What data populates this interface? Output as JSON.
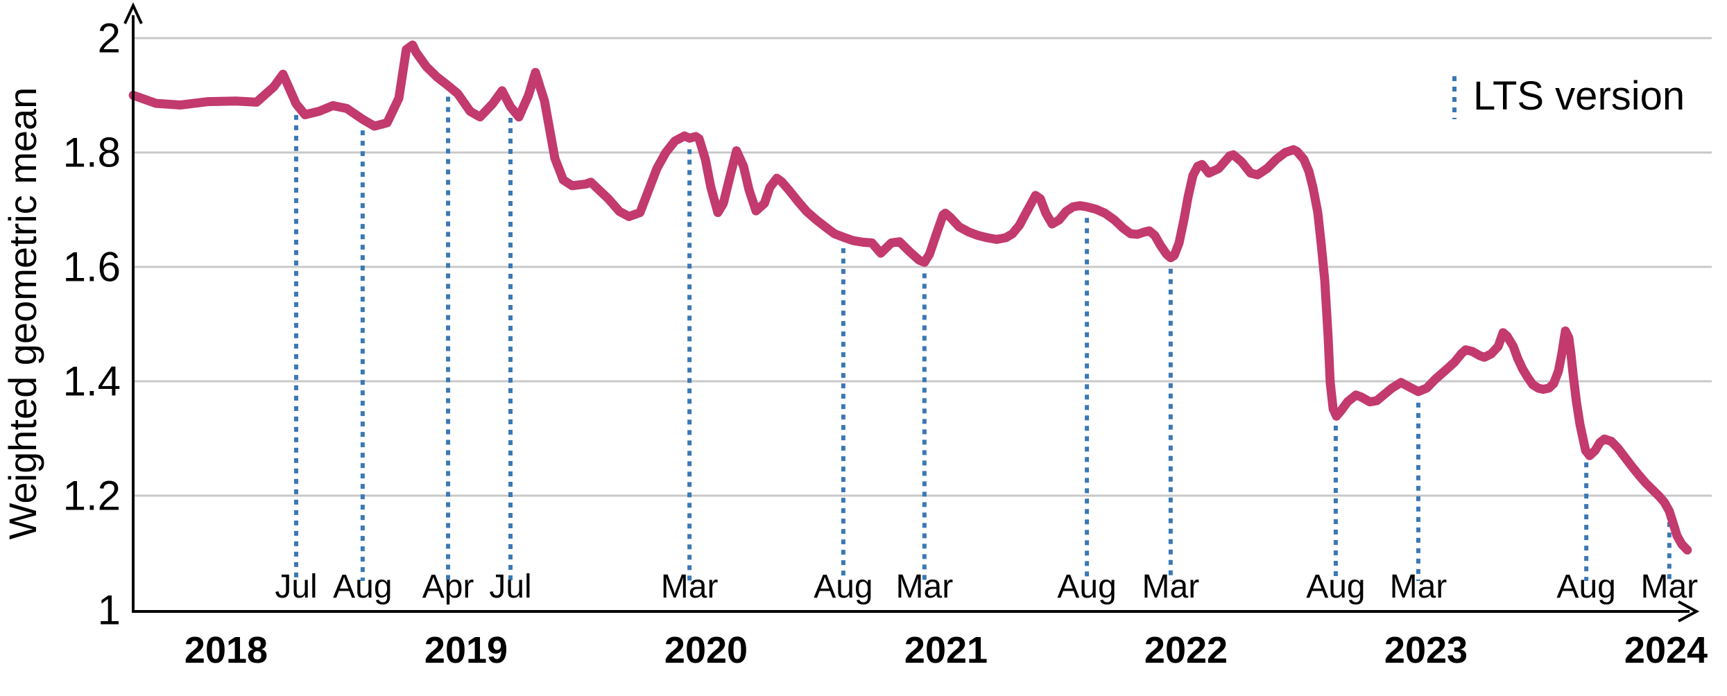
{
  "chart_data": {
    "type": "line",
    "title": "",
    "xlabel": "",
    "ylabel": "Weighted geometric mean",
    "ylim": [
      1,
      2
    ],
    "x_range_years": [
      2017.61,
      2024.15
    ],
    "grid": "horizontal",
    "y_ticks": [
      {
        "value": 2.0,
        "label": "2"
      },
      {
        "value": 1.8,
        "label": "1.8"
      },
      {
        "value": 1.6,
        "label": "1.6"
      },
      {
        "value": 1.4,
        "label": "1.4"
      },
      {
        "value": 1.2,
        "label": "1.2"
      },
      {
        "value": 1.0,
        "label": "1"
      }
    ],
    "x_ticks": [
      {
        "value": 2018,
        "label": "2018"
      },
      {
        "value": 2019,
        "label": "2019"
      },
      {
        "value": 2020,
        "label": "2020"
      },
      {
        "value": 2021,
        "label": "2021"
      },
      {
        "value": 2022,
        "label": "2022"
      },
      {
        "value": 2023,
        "label": "2023"
      },
      {
        "value": 2024,
        "label": "2024"
      }
    ],
    "legend": {
      "label": "LTS version",
      "position": "top-right"
    },
    "colors": {
      "series": "#c23a6e",
      "lts_marker": "#3b78b4",
      "grid": "#c8c8c8",
      "axis": "#000000",
      "text": "#000000"
    },
    "lts_markers": [
      {
        "label": "Jul",
        "t": 2018.292
      },
      {
        "label": "Aug",
        "t": 2018.569
      },
      {
        "label": "Apr",
        "t": 2018.925
      },
      {
        "label": "Jul",
        "t": 2019.185
      },
      {
        "label": "Mar",
        "t": 2019.931
      },
      {
        "label": "Aug",
        "t": 2020.572
      },
      {
        "label": "Mar",
        "t": 2020.91
      },
      {
        "label": "Aug",
        "t": 2021.587
      },
      {
        "label": "Mar",
        "t": 2021.936
      },
      {
        "label": "Aug",
        "t": 2022.624
      },
      {
        "label": "Mar",
        "t": 2022.968
      },
      {
        "label": "Aug",
        "t": 2023.668
      },
      {
        "label": "Mar",
        "t": 2024.014
      }
    ],
    "series": [
      {
        "name": "Weighted geometric mean",
        "points": [
          [
            2017.613,
            1.9
          ],
          [
            2017.708,
            1.886
          ],
          [
            2017.809,
            1.883
          ],
          [
            2017.925,
            1.889
          ],
          [
            2018.04,
            1.89
          ],
          [
            2018.127,
            1.888
          ],
          [
            2018.199,
            1.915
          ],
          [
            2018.237,
            1.937
          ],
          [
            2018.292,
            1.885
          ],
          [
            2018.329,
            1.866
          ],
          [
            2018.387,
            1.872
          ],
          [
            2018.445,
            1.882
          ],
          [
            2018.503,
            1.877
          ],
          [
            2018.569,
            1.858
          ],
          [
            2018.618,
            1.846
          ],
          [
            2018.671,
            1.852
          ],
          [
            2018.72,
            1.895
          ],
          [
            2018.751,
            1.98
          ],
          [
            2018.777,
            1.988
          ],
          [
            2018.792,
            1.975
          ],
          [
            2018.835,
            1.95
          ],
          [
            2018.879,
            1.932
          ],
          [
            2018.925,
            1.917
          ],
          [
            2018.965,
            1.903
          ],
          [
            2019.017,
            1.872
          ],
          [
            2019.058,
            1.862
          ],
          [
            2019.11,
            1.885
          ],
          [
            2019.15,
            1.908
          ],
          [
            2019.185,
            1.88
          ],
          [
            2019.22,
            1.862
          ],
          [
            2019.26,
            1.9
          ],
          [
            2019.289,
            1.94
          ],
          [
            2019.327,
            1.89
          ],
          [
            2019.37,
            1.79
          ],
          [
            2019.405,
            1.752
          ],
          [
            2019.442,
            1.742
          ],
          [
            2019.5,
            1.745
          ],
          [
            2019.52,
            1.748
          ],
          [
            2019.593,
            1.719
          ],
          [
            2019.639,
            1.697
          ],
          [
            2019.679,
            1.688
          ],
          [
            2019.725,
            1.695
          ],
          [
            2019.754,
            1.727
          ],
          [
            2019.795,
            1.772
          ],
          [
            2019.832,
            1.8
          ],
          [
            2019.87,
            1.82
          ],
          [
            2019.91,
            1.829
          ],
          [
            2019.931,
            1.825
          ],
          [
            2019.957,
            1.828
          ],
          [
            2019.971,
            1.824
          ],
          [
            2019.997,
            1.788
          ],
          [
            2020.02,
            1.739
          ],
          [
            2020.049,
            1.695
          ],
          [
            2020.072,
            1.711
          ],
          [
            2020.101,
            1.76
          ],
          [
            2020.127,
            1.803
          ],
          [
            2020.156,
            1.776
          ],
          [
            2020.179,
            1.735
          ],
          [
            2020.208,
            1.698
          ],
          [
            2020.243,
            1.711
          ],
          [
            2020.266,
            1.739
          ],
          [
            2020.295,
            1.755
          ],
          [
            2020.315,
            1.749
          ],
          [
            2020.344,
            1.735
          ],
          [
            2020.382,
            1.715
          ],
          [
            2020.419,
            1.697
          ],
          [
            2020.46,
            1.682
          ],
          [
            2020.497,
            1.67
          ],
          [
            2020.535,
            1.658
          ],
          [
            2020.572,
            1.652
          ],
          [
            2020.613,
            1.646
          ],
          [
            2020.656,
            1.643
          ],
          [
            2020.691,
            1.642
          ],
          [
            2020.728,
            1.624
          ],
          [
            2020.772,
            1.642
          ],
          [
            2020.806,
            1.644
          ],
          [
            2020.85,
            1.626
          ],
          [
            2020.887,
            1.612
          ],
          [
            2020.91,
            1.608
          ],
          [
            2020.931,
            1.622
          ],
          [
            2020.96,
            1.658
          ],
          [
            2020.988,
            1.691
          ],
          [
            2020.997,
            1.694
          ],
          [
            2021.017,
            1.687
          ],
          [
            2021.055,
            1.67
          ],
          [
            2021.095,
            1.661
          ],
          [
            2021.133,
            1.655
          ],
          [
            2021.171,
            1.651
          ],
          [
            2021.211,
            1.648
          ],
          [
            2021.249,
            1.651
          ],
          [
            2021.277,
            1.658
          ],
          [
            2021.306,
            1.673
          ],
          [
            2021.329,
            1.691
          ],
          [
            2021.373,
            1.725
          ],
          [
            2021.393,
            1.719
          ],
          [
            2021.416,
            1.694
          ],
          [
            2021.442,
            1.675
          ],
          [
            2021.471,
            1.682
          ],
          [
            2021.5,
            1.697
          ],
          [
            2021.529,
            1.705
          ],
          [
            2021.558,
            1.707
          ],
          [
            2021.587,
            1.705
          ],
          [
            2021.624,
            1.701
          ],
          [
            2021.662,
            1.694
          ],
          [
            2021.702,
            1.682
          ],
          [
            2021.74,
            1.667
          ],
          [
            2021.769,
            1.658
          ],
          [
            2021.798,
            1.657
          ],
          [
            2021.827,
            1.661
          ],
          [
            2021.847,
            1.663
          ],
          [
            2021.87,
            1.655
          ],
          [
            2021.893,
            1.638
          ],
          [
            2021.919,
            1.622
          ],
          [
            2021.936,
            1.616
          ],
          [
            2021.951,
            1.62
          ],
          [
            2021.971,
            1.642
          ],
          [
            2021.991,
            1.682
          ],
          [
            2022.009,
            1.723
          ],
          [
            2022.029,
            1.76
          ],
          [
            2022.049,
            1.776
          ],
          [
            2022.067,
            1.779
          ],
          [
            2022.095,
            1.764
          ],
          [
            2022.136,
            1.772
          ],
          [
            2022.182,
            1.794
          ],
          [
            2022.197,
            1.796
          ],
          [
            2022.231,
            1.784
          ],
          [
            2022.269,
            1.764
          ],
          [
            2022.298,
            1.761
          ],
          [
            2022.338,
            1.772
          ],
          [
            2022.376,
            1.788
          ],
          [
            2022.413,
            1.8
          ],
          [
            2022.448,
            1.805
          ],
          [
            2022.462,
            1.802
          ],
          [
            2022.491,
            1.788
          ],
          [
            2022.512,
            1.767
          ],
          [
            2022.529,
            1.739
          ],
          [
            2022.549,
            1.695
          ],
          [
            2022.564,
            1.638
          ],
          [
            2022.578,
            1.577
          ],
          [
            2022.592,
            1.48
          ],
          [
            2022.601,
            1.398
          ],
          [
            2022.613,
            1.352
          ],
          [
            2022.627,
            1.339
          ],
          [
            2022.645,
            1.348
          ],
          [
            2022.673,
            1.364
          ],
          [
            2022.708,
            1.376
          ],
          [
            2022.728,
            1.373
          ],
          [
            2022.766,
            1.364
          ],
          [
            2022.795,
            1.366
          ],
          [
            2022.829,
            1.378
          ],
          [
            2022.858,
            1.388
          ],
          [
            2022.896,
            1.398
          ],
          [
            2022.931,
            1.39
          ],
          [
            2022.968,
            1.382
          ],
          [
            2023.003,
            1.388
          ],
          [
            2023.04,
            1.404
          ],
          [
            2023.078,
            1.418
          ],
          [
            2023.118,
            1.433
          ],
          [
            2023.147,
            1.448
          ],
          [
            2023.165,
            1.455
          ],
          [
            2023.194,
            1.452
          ],
          [
            2023.223,
            1.445
          ],
          [
            2023.243,
            1.442
          ],
          [
            2023.272,
            1.448
          ],
          [
            2023.301,
            1.461
          ],
          [
            2023.321,
            1.485
          ],
          [
            2023.338,
            1.479
          ],
          [
            2023.364,
            1.461
          ],
          [
            2023.382,
            1.44
          ],
          [
            2023.402,
            1.422
          ],
          [
            2023.422,
            1.408
          ],
          [
            2023.445,
            1.394
          ],
          [
            2023.468,
            1.388
          ],
          [
            2023.488,
            1.386
          ],
          [
            2023.512,
            1.388
          ],
          [
            2023.532,
            1.396
          ],
          [
            2023.552,
            1.418
          ],
          [
            2023.566,
            1.448
          ],
          [
            2023.581,
            1.488
          ],
          [
            2023.595,
            1.476
          ],
          [
            2023.604,
            1.448
          ],
          [
            2023.613,
            1.412
          ],
          [
            2023.627,
            1.364
          ],
          [
            2023.642,
            1.324
          ],
          [
            2023.665,
            1.279
          ],
          [
            2023.682,
            1.27
          ],
          [
            2023.705,
            1.279
          ],
          [
            2023.725,
            1.293
          ],
          [
            2023.743,
            1.299
          ],
          [
            2023.772,
            1.295
          ],
          [
            2023.8,
            1.283
          ],
          [
            2023.829,
            1.267
          ],
          [
            2023.858,
            1.251
          ],
          [
            2023.887,
            1.236
          ],
          [
            2023.916,
            1.222
          ],
          [
            2023.945,
            1.21
          ],
          [
            2023.974,
            1.198
          ],
          [
            2023.994,
            1.188
          ],
          [
            2024.014,
            1.173
          ],
          [
            2024.032,
            1.149
          ],
          [
            2024.046,
            1.13
          ],
          [
            2024.066,
            1.115
          ],
          [
            2024.089,
            1.105
          ]
        ]
      }
    ]
  }
}
